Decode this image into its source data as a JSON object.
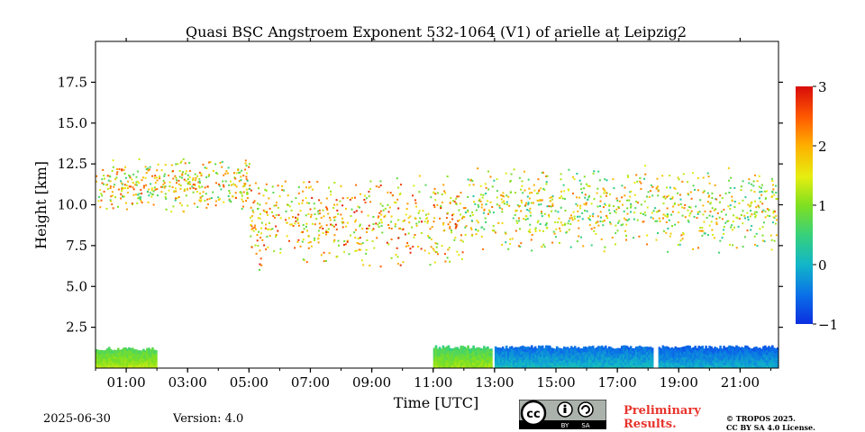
{
  "chart_data": {
    "type": "heatmap",
    "title": "Quasi BSC Angstroem Exponent 532-1064 (V1) of arielle at Leipzig2",
    "xlabel": "Time [UTC]",
    "ylabel": "Height [km]",
    "xlim": [
      "00:00",
      "22:15"
    ],
    "ylim": [
      0,
      20
    ],
    "x_ticks": [
      "01:00",
      "03:00",
      "05:00",
      "07:00",
      "09:00",
      "11:00",
      "13:00",
      "15:00",
      "17:00",
      "19:00",
      "21:00"
    ],
    "y_ticks": [
      "2.5",
      "5.0",
      "7.5",
      "10.0",
      "12.5",
      "15.0",
      "17.5"
    ],
    "colorbar": {
      "min": -1,
      "max": 3,
      "ticks": [
        "−1",
        "0",
        "1",
        "2",
        "3"
      ],
      "colormap": "jet"
    },
    "features": [
      {
        "name": "boundary layer",
        "time": [
          "00:00",
          "02:00"
        ],
        "height_km": [
          0,
          1.3
        ],
        "value": 1.0
      },
      {
        "name": "boundary layer",
        "time": [
          "11:00",
          "12:55"
        ],
        "height_km": [
          0,
          1.4
        ],
        "value": 0.9
      },
      {
        "name": "boundary layer",
        "time": [
          "13:00",
          "18:10"
        ],
        "height_km": [
          0,
          1.4
        ],
        "value": -0.2
      },
      {
        "name": "boundary layer",
        "time": [
          "18:20",
          "22:15"
        ],
        "height_km": [
          0,
          1.4
        ],
        "value": -0.3
      },
      {
        "name": "cirrus",
        "time": [
          "00:00",
          "05:00"
        ],
        "height_km": [
          9.5,
          13
        ],
        "value": 1.5
      },
      {
        "name": "cirrus",
        "time": [
          "05:00",
          "12:00"
        ],
        "height_km": [
          6,
          12
        ],
        "value": 1.8
      },
      {
        "name": "cirrus",
        "time": [
          "12:00",
          "22:15"
        ],
        "height_km": [
          7,
          12.5
        ],
        "value": 1.3
      }
    ]
  },
  "footer": {
    "date": "2025-06-30",
    "version": "Version: 4.0",
    "prelim_line1": "Preliminary",
    "prelim_line2": "Results.",
    "copyright_line1": "© TROPOS 2025.",
    "copyright_line2": "CC BY SA 4.0 License.",
    "badge_by": "BY",
    "badge_sa": "SA"
  }
}
